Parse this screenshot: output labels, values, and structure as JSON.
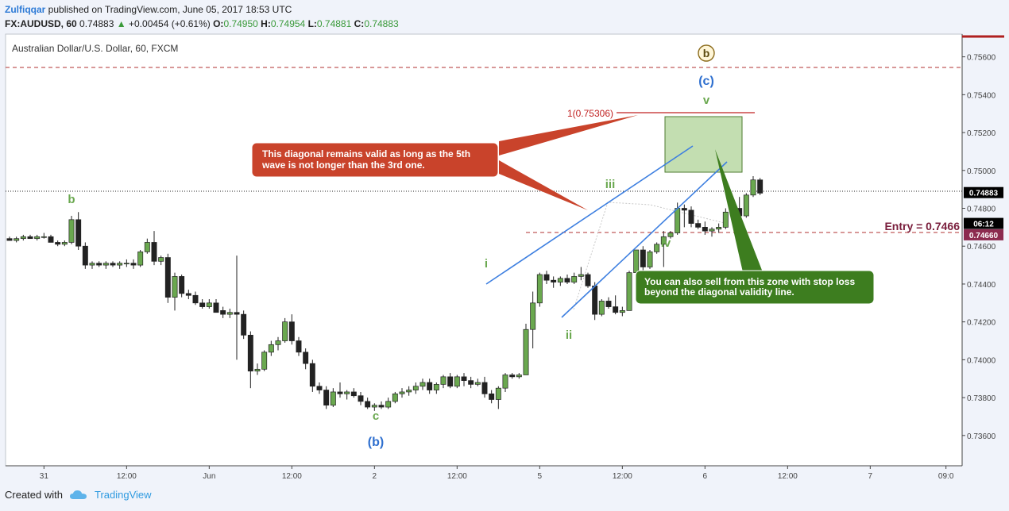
{
  "header": {
    "author": "Zulfiqqar",
    "published": "published on TradingView.com, June 05, 2017 18:53 UTC",
    "symbol": "FX:AUDUSD, 60",
    "last": "0.74883",
    "change": "+0.00454 (+0.61%)",
    "o_label": "O:",
    "o": "0.74950",
    "h_label": "H:",
    "h": "0.74954",
    "l_label": "L:",
    "l": "0.74881",
    "c_label": "C:",
    "c": "0.74883"
  },
  "footer": {
    "created": "Created with",
    "brand": "TradingView"
  },
  "colors": {
    "up": "#6aa84f",
    "down": "#222222",
    "blue_line": "#3d7fe0",
    "red_callout": "#c9432b",
    "green_callout": "#3d7d1f",
    "dashed_red": "#b03030",
    "entry": "#7a1f3d"
  },
  "chart_data": {
    "type": "candlestick",
    "title": "Australian Dollar/U.S. Dollar, 60, FXCM",
    "ylim": [
      0.7344,
      0.7572
    ],
    "y_ticks": [
      "0.75600",
      "0.75400",
      "0.75200",
      "0.75000",
      "0.74800",
      "0.74600",
      "0.74400",
      "0.74200",
      "0.74000",
      "0.73800",
      "0.73600"
    ],
    "y_tick_values": [
      0.756,
      0.754,
      0.752,
      0.75,
      0.748,
      0.746,
      0.744,
      0.742,
      0.74,
      0.738,
      0.736
    ],
    "x_ticks": [
      {
        "label": "31",
        "i": 5
      },
      {
        "label": "12:00",
        "i": 17
      },
      {
        "label": "Jun",
        "i": 29
      },
      {
        "label": "12:00",
        "i": 41
      },
      {
        "label": "2",
        "i": 53
      },
      {
        "label": "12:00",
        "i": 65
      },
      {
        "label": "5",
        "i": 77
      },
      {
        "label": "12:00",
        "i": 89
      },
      {
        "label": "6",
        "i": 101
      },
      {
        "label": "12:00",
        "i": 113
      },
      {
        "label": "7",
        "i": 125
      },
      {
        "label": "09:0",
        "i": 136
      }
    ],
    "x_count": 138,
    "price_badges": [
      {
        "text": "0.74883",
        "value": 0.74883,
        "bg": "#000000"
      },
      {
        "text": "06:12",
        "value": 0.7472,
        "bg": "#000000"
      },
      {
        "text": "0.74660",
        "value": 0.7466,
        "bg": "#8c2b4f"
      }
    ],
    "candles": [
      [
        0.7464,
        0.7465,
        0.7463,
        0.7463
      ],
      [
        0.7463,
        0.7465,
        0.7462,
        0.7464
      ],
      [
        0.7464,
        0.7466,
        0.7463,
        0.7465
      ],
      [
        0.7465,
        0.7466,
        0.7464,
        0.7464
      ],
      [
        0.7464,
        0.7466,
        0.7463,
        0.7465
      ],
      [
        0.7465,
        0.7467,
        0.7464,
        0.7465
      ],
      [
        0.7465,
        0.7466,
        0.7462,
        0.7462
      ],
      [
        0.7462,
        0.7463,
        0.746,
        0.7461
      ],
      [
        0.7461,
        0.7463,
        0.746,
        0.7462
      ],
      [
        0.7462,
        0.7476,
        0.7461,
        0.7474
      ],
      [
        0.7474,
        0.7478,
        0.7458,
        0.746
      ],
      [
        0.746,
        0.7462,
        0.7448,
        0.745
      ],
      [
        0.745,
        0.7452,
        0.7448,
        0.7451
      ],
      [
        0.7451,
        0.7452,
        0.7449,
        0.745
      ],
      [
        0.745,
        0.7452,
        0.7448,
        0.7451
      ],
      [
        0.7451,
        0.7452,
        0.7449,
        0.745
      ],
      [
        0.745,
        0.7452,
        0.7448,
        0.7451
      ],
      [
        0.7451,
        0.7453,
        0.7449,
        0.7451
      ],
      [
        0.7451,
        0.7453,
        0.7448,
        0.745
      ],
      [
        0.745,
        0.7458,
        0.7449,
        0.7457
      ],
      [
        0.7457,
        0.7464,
        0.7456,
        0.7462
      ],
      [
        0.7462,
        0.7468,
        0.745,
        0.7452
      ],
      [
        0.7452,
        0.7455,
        0.745,
        0.7454
      ],
      [
        0.7454,
        0.7456,
        0.743,
        0.7433
      ],
      [
        0.7433,
        0.7446,
        0.7426,
        0.7444
      ],
      [
        0.7444,
        0.7445,
        0.7433,
        0.7435
      ],
      [
        0.7435,
        0.7437,
        0.7432,
        0.7434
      ],
      [
        0.7434,
        0.7436,
        0.7429,
        0.743
      ],
      [
        0.743,
        0.7432,
        0.7427,
        0.7428
      ],
      [
        0.7428,
        0.7432,
        0.7427,
        0.743
      ],
      [
        0.743,
        0.7432,
        0.7426,
        0.7425
      ],
      [
        0.7426,
        0.7428,
        0.7422,
        0.7424
      ],
      [
        0.7424,
        0.7427,
        0.7422,
        0.7425
      ],
      [
        0.7425,
        0.7455,
        0.74,
        0.7424
      ],
      [
        0.7424,
        0.7426,
        0.7411,
        0.7413
      ],
      [
        0.7413,
        0.7415,
        0.7385,
        0.7394
      ],
      [
        0.7394,
        0.7398,
        0.7392,
        0.7395
      ],
      [
        0.7395,
        0.7405,
        0.7394,
        0.7404
      ],
      [
        0.7404,
        0.741,
        0.7402,
        0.7408
      ],
      [
        0.7408,
        0.7412,
        0.7405,
        0.741
      ],
      [
        0.741,
        0.7422,
        0.7409,
        0.742
      ],
      [
        0.742,
        0.7424,
        0.7408,
        0.741
      ],
      [
        0.741,
        0.7412,
        0.7402,
        0.7404
      ],
      [
        0.7404,
        0.7406,
        0.7395,
        0.7398
      ],
      [
        0.7398,
        0.74,
        0.7383,
        0.7386
      ],
      [
        0.7386,
        0.7388,
        0.7382,
        0.7384
      ],
      [
        0.7384,
        0.7386,
        0.7374,
        0.7376
      ],
      [
        0.7376,
        0.7385,
        0.7375,
        0.7383
      ],
      [
        0.7383,
        0.7388,
        0.738,
        0.7382
      ],
      [
        0.7382,
        0.7384,
        0.7379,
        0.7383
      ],
      [
        0.7383,
        0.7385,
        0.738,
        0.7381
      ],
      [
        0.7381,
        0.7383,
        0.7376,
        0.7378
      ],
      [
        0.7378,
        0.738,
        0.7374,
        0.7375
      ],
      [
        0.7375,
        0.7377,
        0.7373,
        0.7376
      ],
      [
        0.7376,
        0.7378,
        0.7374,
        0.7375
      ],
      [
        0.7375,
        0.738,
        0.7374,
        0.7378
      ],
      [
        0.7378,
        0.7383,
        0.7377,
        0.7382
      ],
      [
        0.7382,
        0.7385,
        0.738,
        0.7383
      ],
      [
        0.7383,
        0.7386,
        0.7381,
        0.7384
      ],
      [
        0.7384,
        0.7388,
        0.7382,
        0.7386
      ],
      [
        0.7386,
        0.739,
        0.7384,
        0.7388
      ],
      [
        0.7388,
        0.739,
        0.7382,
        0.7384
      ],
      [
        0.7384,
        0.7388,
        0.7382,
        0.7387
      ],
      [
        0.7387,
        0.7392,
        0.7385,
        0.7391
      ],
      [
        0.7391,
        0.7393,
        0.7385,
        0.7386
      ],
      [
        0.7386,
        0.7392,
        0.7385,
        0.7391
      ],
      [
        0.7391,
        0.7393,
        0.7386,
        0.7389
      ],
      [
        0.7389,
        0.7391,
        0.7385,
        0.7387
      ],
      [
        0.7387,
        0.739,
        0.7386,
        0.7388
      ],
      [
        0.7388,
        0.7391,
        0.738,
        0.7382
      ],
      [
        0.7382,
        0.7384,
        0.7377,
        0.7379
      ],
      [
        0.7379,
        0.7386,
        0.7374,
        0.7385
      ],
      [
        0.7385,
        0.7393,
        0.7383,
        0.7392
      ],
      [
        0.7392,
        0.7393,
        0.739,
        0.7391
      ],
      [
        0.7391,
        0.7393,
        0.739,
        0.7392
      ],
      [
        0.7392,
        0.7419,
        0.7392,
        0.7416
      ],
      [
        0.7416,
        0.7436,
        0.7406,
        0.743
      ],
      [
        0.743,
        0.7446,
        0.7428,
        0.7445
      ],
      [
        0.7445,
        0.7447,
        0.744,
        0.7442
      ],
      [
        0.7442,
        0.7444,
        0.7438,
        0.7441
      ],
      [
        0.7441,
        0.7444,
        0.7439,
        0.7443
      ],
      [
        0.7443,
        0.7445,
        0.744,
        0.7441
      ],
      [
        0.7441,
        0.7446,
        0.744,
        0.7444
      ],
      [
        0.7444,
        0.7449,
        0.7442,
        0.7445
      ],
      [
        0.7445,
        0.7446,
        0.7438,
        0.7439
      ],
      [
        0.7439,
        0.7441,
        0.7421,
        0.7424
      ],
      [
        0.7424,
        0.7432,
        0.7423,
        0.7431
      ],
      [
        0.7431,
        0.7433,
        0.7427,
        0.7428
      ],
      [
        0.7428,
        0.7434,
        0.7424,
        0.7425
      ],
      [
        0.7425,
        0.7428,
        0.7423,
        0.7426
      ],
      [
        0.7426,
        0.7447,
        0.7426,
        0.7446
      ],
      [
        0.7446,
        0.7458,
        0.7445,
        0.7458
      ],
      [
        0.7458,
        0.746,
        0.7446,
        0.7449
      ],
      [
        0.7449,
        0.7458,
        0.7448,
        0.7457
      ],
      [
        0.7457,
        0.7462,
        0.7456,
        0.7461
      ],
      [
        0.7461,
        0.7468,
        0.7449,
        0.7465
      ],
      [
        0.7465,
        0.7468,
        0.7464,
        0.7467
      ],
      [
        0.7467,
        0.7483,
        0.7466,
        0.748
      ],
      [
        0.748,
        0.7482,
        0.747,
        0.7479
      ],
      [
        0.7479,
        0.7481,
        0.747,
        0.7472
      ],
      [
        0.7472,
        0.7474,
        0.7469,
        0.747
      ],
      [
        0.747,
        0.7473,
        0.7466,
        0.7468
      ],
      [
        0.7468,
        0.747,
        0.7465,
        0.7469
      ],
      [
        0.7469,
        0.7472,
        0.7467,
        0.747
      ],
      [
        0.747,
        0.748,
        0.7469,
        0.7478
      ],
      [
        0.7478,
        0.7481,
        0.7475,
        0.748
      ],
      [
        0.748,
        0.7486,
        0.7474,
        0.7476
      ],
      [
        0.7476,
        0.7488,
        0.7475,
        0.7487
      ],
      [
        0.7487,
        0.7497,
        0.7486,
        0.7495
      ],
      [
        0.7495,
        0.7496,
        0.7487,
        0.7488
      ]
    ]
  },
  "annotations": {
    "wave_b_small": "b",
    "wave_c_small": "c",
    "wave_b_paren": "(b)",
    "wave_i": "i",
    "wave_ii": "ii",
    "wave_iii": "iii",
    "wave_iv": "iv",
    "wave_v": "v",
    "wave_c_paren": "(c)",
    "wave_b_circle": "b",
    "fib_label": "1(0.75306)",
    "entry_label": "Entry = 0.7466",
    "red_callout_line1": "This diagonal remains valid as long as the 5th",
    "red_callout_line2": "wave is not longer than the 3rd one.",
    "green_callout_line1": "You can also sell from this zone with stop loss",
    "green_callout_line2": "beyond the diagonal validity line."
  }
}
